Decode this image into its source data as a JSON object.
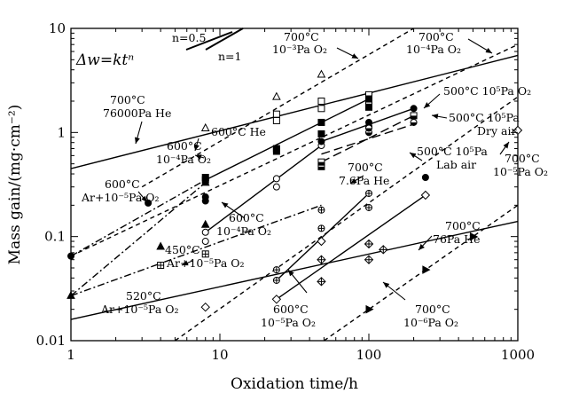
{
  "chart_data": {
    "type": "scatter",
    "xlabel": "Oxidation time/h",
    "ylabel": "Mass gain/(mg·cm⁻²)",
    "xscale": "log",
    "yscale": "log",
    "xlim": [
      1,
      1000
    ],
    "ylim": [
      0.01,
      10
    ],
    "x_ticks": [
      "1",
      "10",
      "100",
      "1000"
    ],
    "y_ticks": [
      "0.01",
      "0.1",
      "1",
      "10"
    ],
    "equation": "Δw=ktⁿ",
    "slope_references": [
      {
        "label": "n=0.5",
        "slope": 0.5
      },
      {
        "label": "n=1",
        "slope": 1
      }
    ],
    "series": [
      {
        "condition": "700°C 10⁻³Pa O₂",
        "marker": "triangle-open",
        "line": "dash",
        "points": [
          [
            8,
            1.1
          ],
          [
            24,
            2.2
          ],
          [
            48,
            3.6
          ]
        ],
        "fit": [
          [
            3,
            0.3
          ],
          [
            200,
            10
          ]
        ]
      },
      {
        "condition": "700°C 10⁻⁴Pa O₂",
        "marker": "square-open",
        "line": "dash",
        "points": [
          [
            24,
            1.3
          ],
          [
            24,
            1.5
          ],
          [
            48,
            1.7
          ],
          [
            48,
            2.0
          ],
          [
            100,
            2.0
          ],
          [
            100,
            2.3
          ]
        ],
        "fit": [
          [
            1,
            0.065
          ],
          [
            1000,
            7
          ]
        ]
      },
      {
        "condition": "700°C 76000Pa He",
        "marker": "none",
        "line": "solid",
        "points": [],
        "fit": [
          [
            1,
            0.45
          ],
          [
            1000,
            5.5
          ]
        ]
      },
      {
        "condition": "600°C He",
        "marker": "square-filled",
        "line": "solid",
        "points": [
          [
            8,
            0.35
          ],
          [
            8,
            0.37
          ],
          [
            24,
            0.66
          ],
          [
            24,
            0.7
          ],
          [
            48,
            0.97
          ],
          [
            48,
            1.25
          ],
          [
            100,
            1.75
          ],
          [
            100,
            2.1
          ]
        ],
        "fit": [
          [
            8,
            0.35
          ],
          [
            100,
            2.1
          ]
        ]
      },
      {
        "condition": "600°C 10⁻⁴Pa O₂",
        "marker": "circle-open",
        "line": "solid",
        "points": [
          [
            8,
            0.09
          ],
          [
            8,
            0.11
          ],
          [
            24,
            0.3
          ],
          [
            24,
            0.36
          ],
          [
            48,
            0.75
          ]
        ],
        "fit": [
          [
            8,
            0.11
          ],
          [
            48,
            0.75
          ]
        ]
      },
      {
        "condition": "500°C 10⁵Pa O₂",
        "marker": "circle-filled",
        "line": "solid",
        "points": [
          [
            48,
            0.82
          ],
          [
            100,
            1.15
          ],
          [
            100,
            1.25
          ],
          [
            200,
            1.7
          ],
          [
            240,
            0.37
          ]
        ],
        "fit": [
          [
            48,
            0.82
          ],
          [
            200,
            1.7
          ]
        ]
      },
      {
        "condition": "500°C 10⁵Pa Dry air",
        "marker": "square-half",
        "line": "long-dash",
        "points": [
          [
            48,
            0.47
          ],
          [
            48,
            0.52
          ],
          [
            200,
            1.45
          ]
        ],
        "fit": [
          [
            48,
            0.52
          ],
          [
            200,
            1.45
          ]
        ]
      },
      {
        "condition": "500°C 10⁵Pa Lab air",
        "marker": "circle-half",
        "line": "long-dash",
        "points": [
          [
            100,
            1.0
          ],
          [
            100,
            1.1
          ],
          [
            200,
            1.25
          ]
        ],
        "fit": [
          [
            48,
            0.62
          ],
          [
            200,
            1.2
          ]
        ]
      },
      {
        "condition": "600°C Ar+10⁻⁵Pa O₂",
        "marker": "circle-filled",
        "line": "dash-dot",
        "points": [
          [
            1,
            0.065
          ],
          [
            3.3,
            0.21
          ],
          [
            8,
            0.22
          ],
          [
            8,
            0.24
          ]
        ],
        "fit": [
          [
            1,
            0.065
          ],
          [
            8,
            0.35
          ]
        ]
      },
      {
        "condition": "450°C Ar+10⁻⁵Pa O₂",
        "marker": "crossed-square",
        "line": "dash-dot",
        "points": [
          [
            4,
            0.053
          ],
          [
            8,
            0.068
          ]
        ],
        "fit": [
          [
            1,
            0.027
          ],
          [
            48,
            0.2
          ]
        ]
      },
      {
        "condition": "520°C Ar+10⁻⁵Pa O₂",
        "marker": "triangle-filled",
        "line": "dash-dot",
        "points": [
          [
            1,
            0.027
          ],
          [
            4,
            0.08
          ],
          [
            8,
            0.13
          ],
          [
            8,
            0.33
          ]
        ],
        "fit": [
          [
            1,
            0.027
          ],
          [
            8,
            0.33
          ]
        ]
      },
      {
        "condition": "700°C 7.6Pa He",
        "marker": "crossed-circle",
        "line": "solid",
        "points": [
          [
            24,
            0.038
          ],
          [
            24,
            0.048
          ],
          [
            48,
            0.12
          ],
          [
            48,
            0.18
          ],
          [
            100,
            0.19
          ],
          [
            100,
            0.26
          ]
        ],
        "fit": [
          [
            24,
            0.038
          ],
          [
            100,
            0.26
          ]
        ]
      },
      {
        "condition": "700°C 76Pa He",
        "marker": "none",
        "line": "solid",
        "points": [],
        "fit": [
          [
            1,
            0.016
          ],
          [
            1000,
            0.14
          ]
        ]
      },
      {
        "condition": "600°C 10⁻⁵Pa O₂",
        "marker": "diamond-open",
        "line": "solid",
        "points": [
          [
            8,
            0.021
          ],
          [
            24,
            0.025
          ],
          [
            48,
            0.09
          ],
          [
            240,
            0.25
          ],
          [
            1000,
            1.05
          ]
        ],
        "fit": [
          [
            24,
            0.025
          ],
          [
            240,
            0.25
          ]
        ]
      },
      {
        "condition": "700°C 10⁻⁵Pa O₂",
        "marker": "crossed-diamond",
        "line": "dash",
        "points": [
          [
            48,
            0.037
          ],
          [
            48,
            0.06
          ],
          [
            100,
            0.06
          ],
          [
            100,
            0.085
          ],
          [
            125,
            0.075
          ]
        ],
        "fit": [
          [
            5,
            0.01
          ],
          [
            1000,
            2.2
          ]
        ]
      },
      {
        "condition": "700°C 10⁻⁶Pa O₂",
        "marker": "triangle-right-filled",
        "line": "dash",
        "points": [
          [
            100,
            0.02
          ],
          [
            240,
            0.048
          ],
          [
            500,
            0.1
          ]
        ],
        "fit": [
          [
            50,
            0.01
          ],
          [
            1000,
            0.2
          ]
        ]
      }
    ],
    "annotations": [
      "n=0.5",
      "n=1",
      "700°C",
      "10⁻³Pa O₂",
      "700°C",
      "10⁻⁴Pa O₂",
      "500°C 10⁵Pa O₂",
      "700°C",
      "76000Pa He",
      "600°C He",
      "600°C",
      "10⁻⁴Pa O₂",
      "500°C 10⁵Pa",
      "Dry air",
      "500°C 10⁵Pa",
      "Lab air",
      "700°C",
      "10⁻⁵Pa O₂",
      "600°C",
      "Ar+10⁻⁵Pa O₂",
      "700°C",
      "7.6Pa He",
      "600°C",
      "10⁻⁴Pa O₂",
      "700°C",
      "76Pa He",
      "450°C",
      "Ar+10⁻⁵Pa O₂",
      "520°C",
      "Ar+10⁻⁵Pa O₂",
      "600°C",
      "10⁻⁵Pa O₂",
      "700°C",
      "10⁻⁶Pa O₂"
    ]
  }
}
